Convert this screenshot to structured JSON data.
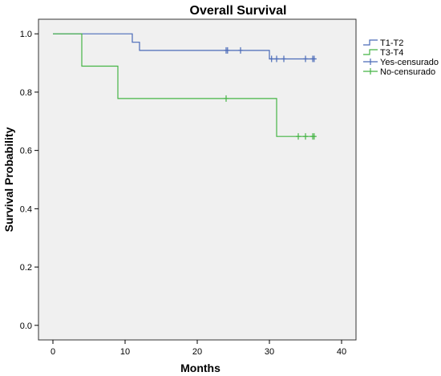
{
  "chart_data": {
    "type": "line",
    "subtype": "kaplan-meier-step",
    "title": "Overall Survival",
    "xlabel": "Months",
    "ylabel": "Survival Probability",
    "xlim": [
      -2,
      42
    ],
    "ylim": [
      -0.05,
      1.05
    ],
    "xticks": [
      0,
      10,
      20,
      30,
      40
    ],
    "yticks": [
      0.0,
      0.2,
      0.4,
      0.6,
      0.8,
      1.0
    ],
    "xtick_labels": [
      "0",
      "10",
      "20",
      "30",
      "40"
    ],
    "ytick_labels": [
      "0.0",
      "0.2",
      "0.4",
      "0.6",
      "0.8",
      "1.0"
    ],
    "grid": false,
    "legend_position": "right",
    "plot_background": "#f0f0f0",
    "series": [
      {
        "name": "T1-T2",
        "color": "#4a6ab8",
        "steps": [
          [
            0,
            1.0
          ],
          [
            11,
            1.0
          ],
          [
            11,
            0.971
          ],
          [
            12,
            0.971
          ],
          [
            12,
            0.943
          ],
          [
            30,
            0.943
          ],
          [
            30,
            0.914
          ],
          [
            36,
            0.914
          ]
        ],
        "censored": [
          [
            24,
            0.943
          ],
          [
            24.2,
            0.943
          ],
          [
            26,
            0.943
          ],
          [
            30.3,
            0.914
          ],
          [
            31,
            0.914
          ],
          [
            32,
            0.914
          ],
          [
            35,
            0.914
          ],
          [
            36,
            0.914
          ],
          [
            36.2,
            0.914
          ]
        ]
      },
      {
        "name": "T3-T4",
        "color": "#45b545",
        "steps": [
          [
            0,
            1.0
          ],
          [
            4,
            1.0
          ],
          [
            4,
            0.889
          ],
          [
            9,
            0.889
          ],
          [
            9,
            0.778
          ],
          [
            31,
            0.778
          ],
          [
            31,
            0.648
          ],
          [
            36,
            0.648
          ]
        ],
        "censored": [
          [
            24,
            0.778
          ],
          [
            34,
            0.648
          ],
          [
            35,
            0.648
          ],
          [
            36,
            0.648
          ],
          [
            36.2,
            0.648
          ]
        ]
      }
    ],
    "legend": [
      {
        "label": "T1-T2",
        "kind": "step",
        "color": "#4a6ab8"
      },
      {
        "label": "T3-T4",
        "kind": "step",
        "color": "#45b545"
      },
      {
        "label": "Yes-censurado",
        "kind": "censor",
        "color": "#4a6ab8"
      },
      {
        "label": "No-censurado",
        "kind": "censor",
        "color": "#45b545"
      }
    ]
  }
}
